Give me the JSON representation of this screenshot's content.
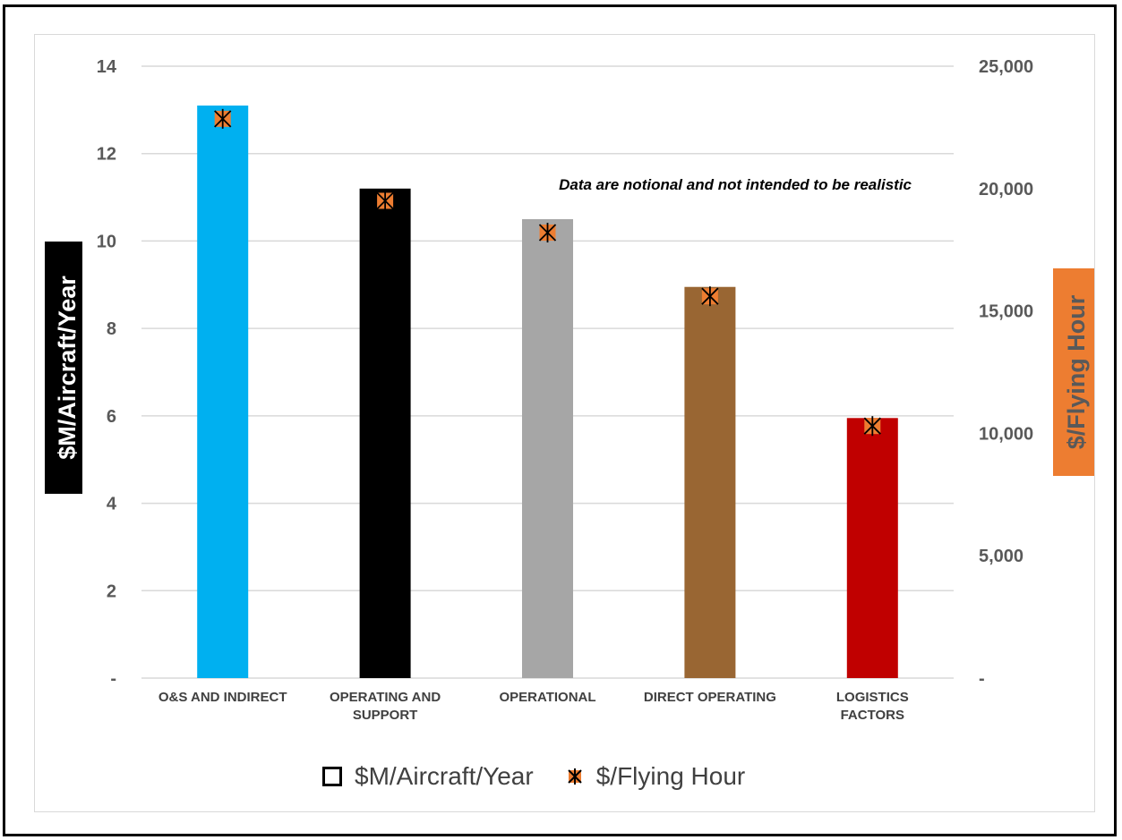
{
  "chart_data": {
    "type": "bar",
    "categories": [
      "O&S AND INDIRECT",
      "OPERATING AND SUPPORT",
      "OPERATIONAL",
      "DIRECT OPERATING",
      "LOGISTICS FACTORS"
    ],
    "category_lines": [
      [
        "O&S AND INDIRECT"
      ],
      [
        "OPERATING AND",
        "SUPPORT"
      ],
      [
        "OPERATIONAL"
      ],
      [
        "DIRECT OPERATING"
      ],
      [
        "LOGISTICS",
        "FACTORS"
      ]
    ],
    "series": [
      {
        "name": "$M/Aircraft/Year",
        "kind": "bar",
        "axis": "left",
        "values": [
          13.1,
          11.2,
          10.5,
          8.95,
          5.95
        ],
        "colors": [
          "#00b0f0",
          "#000000",
          "#a6a6a6",
          "#996633",
          "#c00000"
        ]
      },
      {
        "name": "$/Flying Hour",
        "kind": "marker",
        "axis": "right",
        "values": [
          22850,
          19500,
          18200,
          15600,
          10300
        ],
        "color": "#ed7d31"
      }
    ],
    "ylabel": "$M/Aircraft/Year",
    "y2label": "$/Flying Hour",
    "ylim": [
      0,
      14
    ],
    "y2lim": [
      0,
      25000
    ],
    "yticks": [
      0,
      2,
      4,
      6,
      8,
      10,
      12,
      14
    ],
    "ytick_labels": [
      "-",
      "2",
      "4",
      "6",
      "8",
      "10",
      "12",
      "14"
    ],
    "y2ticks": [
      0,
      5000,
      10000,
      15000,
      20000,
      25000
    ],
    "y2tick_labels": [
      "-",
      "5,000",
      "10,000",
      "15,000",
      "20,000",
      "25,000"
    ],
    "annotation": "Data are notional and not intended to be realistic",
    "grid": true,
    "legend_position": "bottom",
    "ylabel_bg": "#000000",
    "y2label_bg": "#ed7d31"
  },
  "legend": {
    "bar_label": "$M/Aircraft/Year",
    "marker_label": "$/Flying Hour"
  }
}
